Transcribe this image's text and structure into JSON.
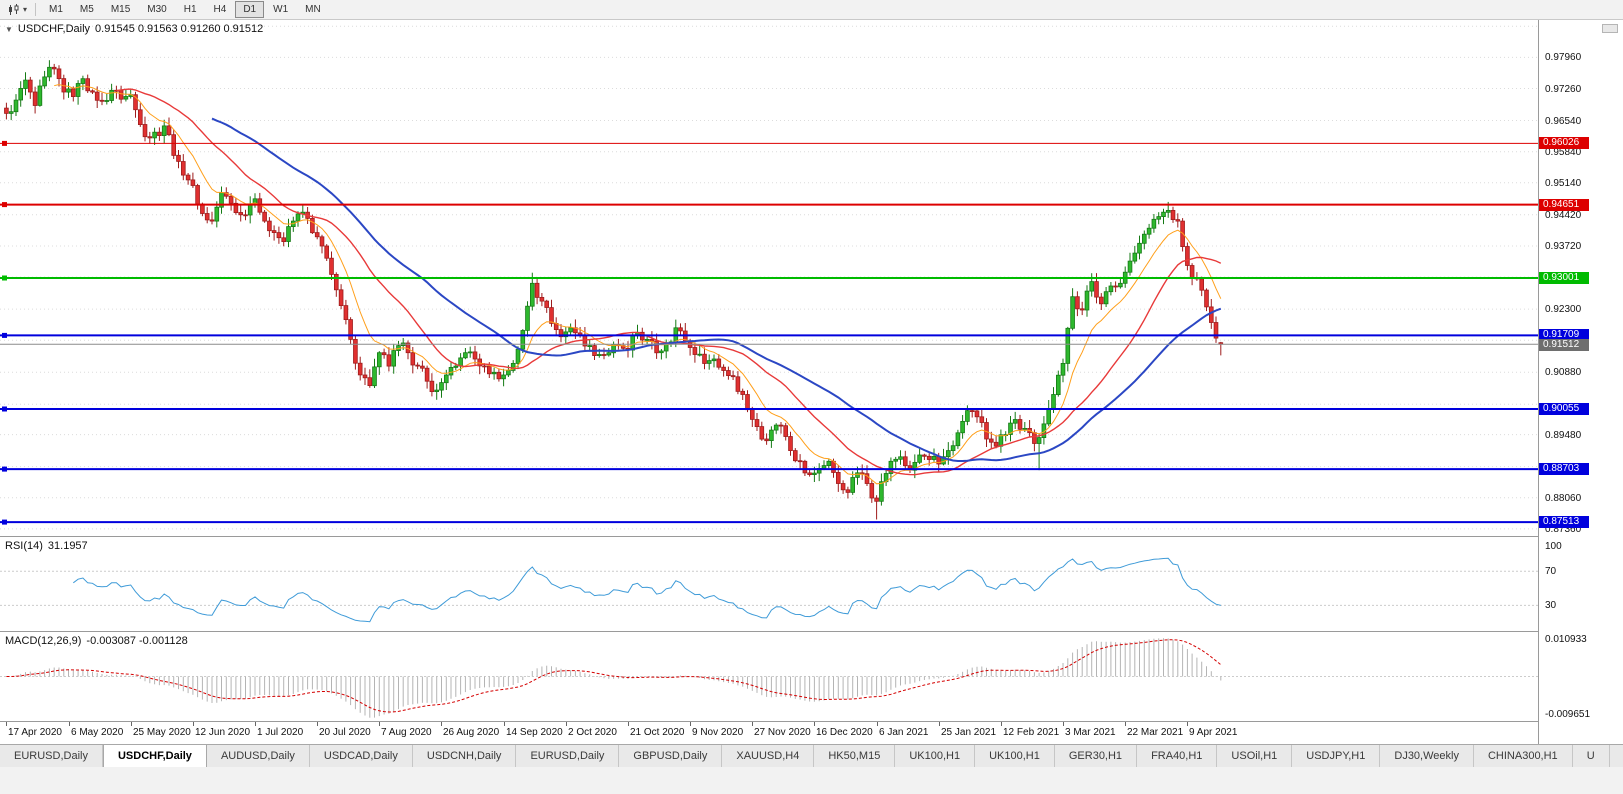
{
  "icons": {
    "collapse": "▼",
    "dropdown": "▾"
  },
  "toolbar": {
    "timeframes": [
      "M1",
      "M5",
      "M15",
      "M30",
      "H1",
      "H4",
      "D1",
      "W1",
      "MN"
    ],
    "active_timeframe": "D1"
  },
  "chart": {
    "symbol": "USDCHF,Daily",
    "ohlc": "0.91545 0.91563 0.91260 0.91512",
    "current_price": 0.91512,
    "current_price_label": "0.91512",
    "price_range": {
      "min": 0.872,
      "max": 0.988
    },
    "bars": 255,
    "right_shift_bars": 65,
    "gridlines": [
      0.9866,
      0.9796,
      0.9726,
      0.9654,
      0.9584,
      0.9514,
      0.9442,
      0.9372,
      0.9302,
      0.923,
      0.916,
      0.9088,
      0.9016,
      0.8948,
      0.8876,
      0.8806,
      0.8736
    ],
    "axis_labels": [
      {
        "price": 0.9796,
        "text": "0.97960"
      },
      {
        "price": 0.9726,
        "text": "0.97260"
      },
      {
        "price": 0.9654,
        "text": "0.96540"
      },
      {
        "price": 0.9584,
        "text": "0.95840"
      },
      {
        "price": 0.9514,
        "text": "0.95140"
      },
      {
        "price": 0.9442,
        "text": "0.94420"
      },
      {
        "price": 0.9372,
        "text": "0.93720"
      },
      {
        "price": 0.923,
        "text": "0.92300"
      },
      {
        "price": 0.9088,
        "text": "0.90880"
      },
      {
        "price": 0.8948,
        "text": "0.89480"
      },
      {
        "price": 0.8806,
        "text": "0.88060"
      },
      {
        "price": 0.8736,
        "text": "0.87360"
      }
    ],
    "levels": [
      {
        "price": 0.96026,
        "label": "0.96026",
        "color": "#dd0000",
        "width": 1
      },
      {
        "price": 0.94651,
        "label": "0.94651",
        "color": "#dd0000",
        "width": 2
      },
      {
        "price": 0.93001,
        "label": "0.93001",
        "color": "#00bb00",
        "width": 2
      },
      {
        "price": 0.91709,
        "label": "0.91709",
        "color": "#0000dd",
        "width": 2
      },
      {
        "price": 0.90055,
        "label": "0.90055",
        "color": "#0000dd",
        "width": 2
      },
      {
        "price": 0.88703,
        "label": "0.88703",
        "color": "#0000dd",
        "width": 2
      },
      {
        "price": 0.87513,
        "label": "0.87513",
        "color": "#0000dd",
        "width": 2
      }
    ],
    "colors": {
      "up": "#2eb82e",
      "up_stroke": "#157a15",
      "down": "#e03030",
      "down_stroke": "#9e1c1c",
      "grid": "#dcdcdc",
      "current_price_line": "#8c8c8c",
      "current_tag_bg": "#6e6e6e"
    },
    "mas": [
      {
        "type": "ema",
        "period": 10,
        "color": "#ff9f1a",
        "width": 1
      },
      {
        "type": "sma",
        "period": 24,
        "color": "#e83a3a",
        "width": 1.4
      },
      {
        "type": "sma",
        "period": 44,
        "color": "#2b47c4",
        "width": 2
      }
    ],
    "anchors": [
      [
        0,
        0.967
      ],
      [
        2,
        0.97
      ],
      [
        4,
        0.9745
      ],
      [
        6,
        0.9688
      ],
      [
        8,
        0.9752
      ],
      [
        10,
        0.977
      ],
      [
        12,
        0.9718
      ],
      [
        14,
        0.9708
      ],
      [
        16,
        0.9748
      ],
      [
        18,
        0.9718
      ],
      [
        20,
        0.9698
      ],
      [
        22,
        0.9722
      ],
      [
        24,
        0.9702
      ],
      [
        26,
        0.9712
      ],
      [
        28,
        0.9645
      ],
      [
        30,
        0.9615
      ],
      [
        33,
        0.9642
      ],
      [
        36,
        0.9562
      ],
      [
        39,
        0.9508
      ],
      [
        41,
        0.9445
      ],
      [
        43,
        0.9428
      ],
      [
        45,
        0.9492
      ],
      [
        47,
        0.9468
      ],
      [
        49,
        0.9442
      ],
      [
        52,
        0.9478
      ],
      [
        54,
        0.9428
      ],
      [
        56,
        0.9402
      ],
      [
        58,
        0.9382
      ],
      [
        60,
        0.9428
      ],
      [
        62,
        0.9448
      ],
      [
        64,
        0.9402
      ],
      [
        66,
        0.9372
      ],
      [
        68,
        0.9308
      ],
      [
        70,
        0.9238
      ],
      [
        72,
        0.9162
      ],
      [
        74,
        0.9082
      ],
      [
        76,
        0.9058
      ],
      [
        78,
        0.9132
      ],
      [
        80,
        0.9102
      ],
      [
        82,
        0.9148
      ],
      [
        84,
        0.9132
      ],
      [
        86,
        0.9102
      ],
      [
        88,
        0.9068
      ],
      [
        90,
        0.9048
      ],
      [
        92,
        0.9082
      ],
      [
        94,
        0.9102
      ],
      [
        96,
        0.9132
      ],
      [
        98,
        0.9118
      ],
      [
        100,
        0.9102
      ],
      [
        102,
        0.9088
      ],
      [
        104,
        0.9082
      ],
      [
        106,
        0.9108
      ],
      [
        108,
        0.9182
      ],
      [
        110,
        0.9288
      ],
      [
        112,
        0.9248
      ],
      [
        114,
        0.9198
      ],
      [
        116,
        0.9168
      ],
      [
        118,
        0.9188
      ],
      [
        120,
        0.9172
      ],
      [
        122,
        0.9148
      ],
      [
        124,
        0.9128
      ],
      [
        126,
        0.9132
      ],
      [
        128,
        0.9148
      ],
      [
        130,
        0.9138
      ],
      [
        132,
        0.9178
      ],
      [
        134,
        0.9162
      ],
      [
        136,
        0.9132
      ],
      [
        138,
        0.9152
      ],
      [
        140,
        0.9188
      ],
      [
        142,
        0.9158
      ],
      [
        144,
        0.9128
      ],
      [
        146,
        0.9108
      ],
      [
        148,
        0.9118
      ],
      [
        150,
        0.9092
      ],
      [
        152,
        0.9078
      ],
      [
        154,
        0.9038
      ],
      [
        156,
        0.8982
      ],
      [
        158,
        0.8938
      ],
      [
        160,
        0.8958
      ],
      [
        162,
        0.8968
      ],
      [
        164,
        0.8912
      ],
      [
        166,
        0.8888
      ],
      [
        168,
        0.8858
      ],
      [
        170,
        0.8872
      ],
      [
        172,
        0.8888
      ],
      [
        174,
        0.8838
      ],
      [
        176,
        0.8818
      ],
      [
        178,
        0.8862
      ],
      [
        180,
        0.8838
      ],
      [
        182,
        0.8798
      ],
      [
        183,
        0.8842
      ],
      [
        185,
        0.8888
      ],
      [
        187,
        0.8898
      ],
      [
        189,
        0.8868
      ],
      [
        191,
        0.8902
      ],
      [
        193,
        0.8892
      ],
      [
        195,
        0.8882
      ],
      [
        197,
        0.8912
      ],
      [
        199,
        0.8952
      ],
      [
        201,
        0.9002
      ],
      [
        203,
        0.8988
      ],
      [
        205,
        0.8938
      ],
      [
        207,
        0.8922
      ],
      [
        209,
        0.8948
      ],
      [
        211,
        0.8982
      ],
      [
        213,
        0.8962
      ],
      [
        215,
        0.8928
      ],
      [
        217,
        0.8972
      ],
      [
        219,
        0.9038
      ],
      [
        221,
        0.9108
      ],
      [
        223,
        0.9258
      ],
      [
        225,
        0.9228
      ],
      [
        227,
        0.9292
      ],
      [
        229,
        0.9242
      ],
      [
        231,
        0.9282
      ],
      [
        233,
        0.9288
      ],
      [
        235,
        0.9338
      ],
      [
        237,
        0.9378
      ],
      [
        239,
        0.9412
      ],
      [
        241,
        0.9438
      ],
      [
        243,
        0.9452
      ],
      [
        245,
        0.9428
      ],
      [
        247,
        0.9328
      ],
      [
        249,
        0.9298
      ],
      [
        251,
        0.9235
      ],
      [
        252,
        0.92
      ],
      [
        253,
        0.9165
      ],
      [
        254,
        0.91512
      ]
    ],
    "wick_overrides": [
      {
        "bar": 110,
        "high": 0.9312
      },
      {
        "bar": 182,
        "low": 0.8757
      },
      {
        "bar": 216,
        "low": 0.8868
      },
      {
        "bar": 243,
        "high": 0.9471
      }
    ],
    "last_bar": {
      "open": 0.91545,
      "high": 0.91563,
      "low": 0.9126,
      "close": 0.91512
    }
  },
  "rsi": {
    "name": "RSI(14)",
    "value": "31.1957",
    "period": 14,
    "color": "#3f9bd8",
    "axis_labels": [
      100,
      70,
      30
    ],
    "level_lines": [
      70,
      30
    ]
  },
  "macd": {
    "name": "MACD(12,26,9)",
    "values": "-0.003087 -0.001128",
    "fast": 12,
    "slow": 26,
    "signal": 9,
    "hist_color": "#b4b4b4",
    "signal_color": "#d40000",
    "axis_top": "0.010933",
    "axis_bottom": "-0.009651"
  },
  "time_axis": {
    "labels": [
      {
        "text": "17 Apr 2020",
        "bar": 0
      },
      {
        "text": "6 May 2020",
        "bar": 13
      },
      {
        "text": "25 May 2020",
        "bar": 26
      },
      {
        "text": "12 Jun 2020",
        "bar": 39
      },
      {
        "text": "1 Jul 2020",
        "bar": 52
      },
      {
        "text": "20 Jul 2020",
        "bar": 65
      },
      {
        "text": "7 Aug 2020",
        "bar": 78
      },
      {
        "text": "26 Aug 2020",
        "bar": 91
      },
      {
        "text": "14 Sep 2020",
        "bar": 104
      },
      {
        "text": "2 Oct 2020",
        "bar": 117
      },
      {
        "text": "21 Oct 2020",
        "bar": 130
      },
      {
        "text": "9 Nov 2020",
        "bar": 143
      },
      {
        "text": "27 Nov 2020",
        "bar": 156
      },
      {
        "text": "16 Dec 2020",
        "bar": 169
      },
      {
        "text": "6 Jan 2021",
        "bar": 182
      },
      {
        "text": "25 Jan 2021",
        "bar": 195
      },
      {
        "text": "12 Feb 2021",
        "bar": 208
      },
      {
        "text": "3 Mar 2021",
        "bar": 221
      },
      {
        "text": "22 Mar 2021",
        "bar": 234
      },
      {
        "text": "9 Apr 2021",
        "bar": 247
      }
    ]
  },
  "tabs": {
    "items": [
      "EURUSD,Daily",
      "USDCHF,Daily",
      "AUDUSD,Daily",
      "USDCAD,Daily",
      "USDCNH,Daily",
      "EURUSD,Daily",
      "GBPUSD,Daily",
      "XAUUSD,H4",
      "HK50,M15",
      "UK100,H1",
      "UK100,H1",
      "GER30,H1",
      "FRA40,H1",
      "USOil,H1",
      "USDJPY,H1",
      "DJ30,Weekly",
      "CHINA300,H1",
      "U"
    ],
    "active_index": 1
  }
}
